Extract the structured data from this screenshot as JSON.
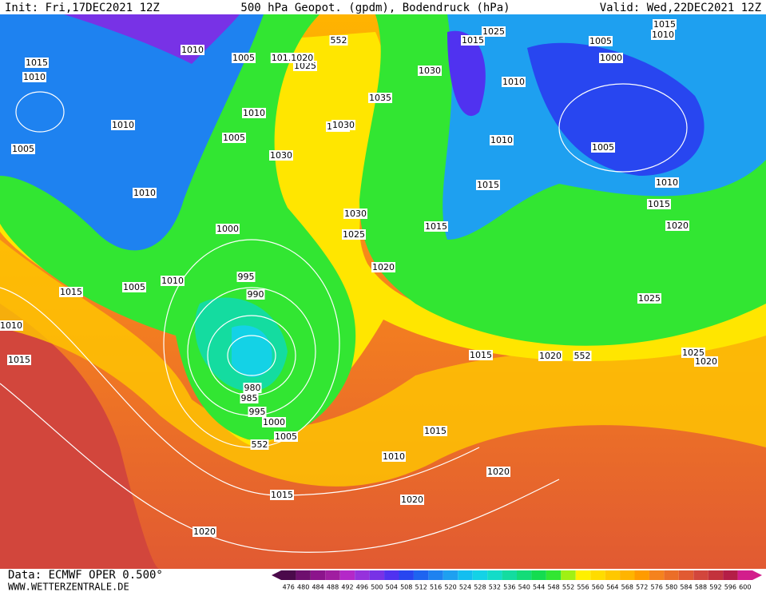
{
  "header": {
    "init": "Init: Fri,17DEC2021 12Z",
    "title": "500 hPa Geopot. (gpdm), Bodendruck (hPa)",
    "valid": "Valid: Wed,22DEC2021 12Z"
  },
  "footer": {
    "data": "Data: ECMWF OPER 0.500°",
    "site": "WWW.WETTERZENTRALE.DE"
  },
  "isobar_labels": [
    1015,
    1010,
    1010,
    1005,
    1010,
    1005,
    1010,
    1010,
    1005,
    1030,
    1000,
    1005,
    1010,
    1015,
    1010,
    1015,
    995,
    990,
    980,
    985,
    995,
    1000,
    1005,
    552,
    1010,
    1015,
    1015,
    1020,
    1020,
    1020,
    1015,
    1020,
    552,
    1025,
    1020,
    1025,
    1020,
    1015,
    1010,
    1005,
    1000,
    1005,
    1010,
    1015,
    1025,
    1015,
    1010,
    1030,
    1035,
    1010,
    1015,
    1015,
    1020,
    1025,
    1030,
    1030,
    1025,
    "101.1020",
    552,
    1030
  ],
  "scale": {
    "values": [
      476,
      480,
      484,
      488,
      492,
      496,
      500,
      504,
      508,
      512,
      516,
      520,
      524,
      528,
      532,
      536,
      540,
      544,
      548,
      552,
      556,
      560,
      564,
      568,
      572,
      576,
      580,
      584,
      588,
      592,
      596,
      600
    ],
    "colors": [
      "#4b0a4b",
      "#6e0f6e",
      "#8c148c",
      "#a01ea0",
      "#b428c8",
      "#9632dc",
      "#7832e6",
      "#5032f0",
      "#2846f0",
      "#1e64f0",
      "#1e82f0",
      "#1ea0f0",
      "#14bef0",
      "#14d2e6",
      "#14dcc8",
      "#14dca0",
      "#14dc78",
      "#14dc50",
      "#32e632",
      "#a0f014",
      "#fff000",
      "#ffdc00",
      "#ffc800",
      "#ffb400",
      "#ff9b00",
      "#f5821e",
      "#eb6e28",
      "#e15a32",
      "#d2463c",
      "#c3323c",
      "#b41e46",
      "#d21e8c"
    ]
  }
}
